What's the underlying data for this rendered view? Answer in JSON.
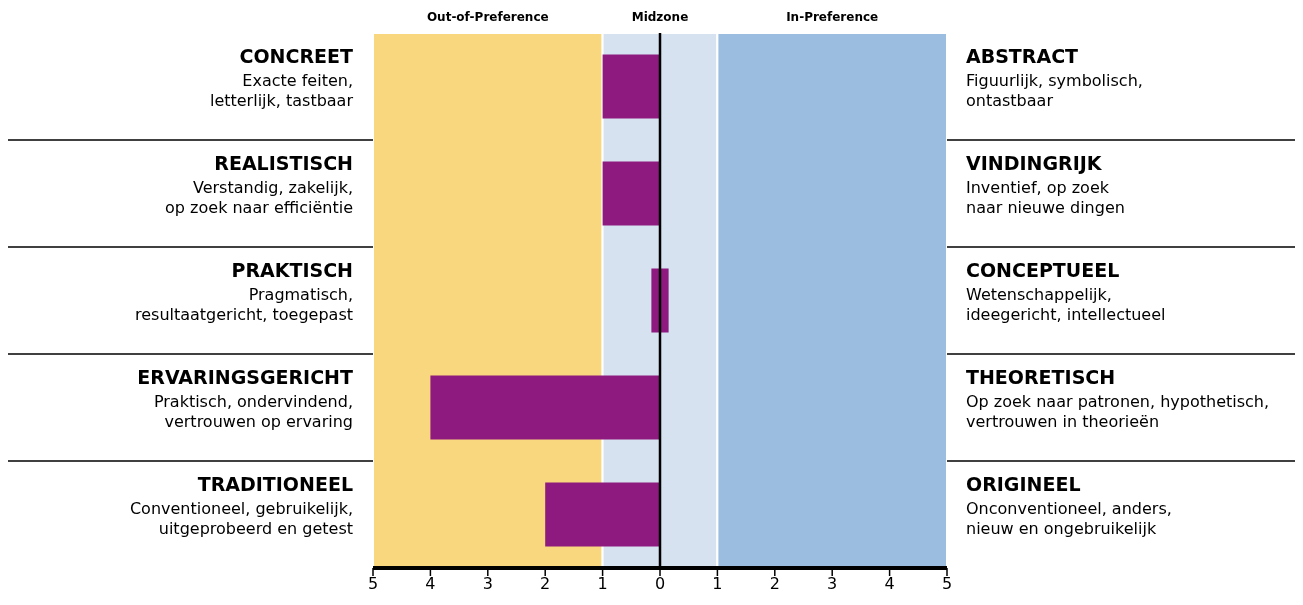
{
  "chart_data": {
    "type": "bar",
    "orientation": "horizontal",
    "categories": [
      "CONCREET\nExacte feiten,\nletterlijk, tastbaar",
      "REALISTISCH\nVerstandig, zakelijk,\nop zoek naar efficiëntie",
      "PRAKTISCH\nPragmatisch,\nresultaatgericht, toegepast",
      "ERVARINGSGERICHT\nPraktisch, ondervindend,\nvertrouwen op ervaring",
      "TRADITIONEEL\nConventioneel, gebruikelijk,\nuitgeprobeerd en getest"
    ],
    "y2_categories": [
      "ABSTRACT\nFiguurlijk, symbolisch,\nontastbaar",
      "VINDINGRIJK\nInventief, op zoek\nnaar nieuwe dingen",
      "CONCEPTUEEL\nWetenschappelijk,\nideegericht, intellectueel",
      "THEORETISCH\nOp zoek naar patronen, hypothetisch,\nvertrouwen in theorieën",
      "ORIGINEEL\nOnconventioneel, anders,\nnieuw en ongebruikelijk"
    ],
    "values": [
      -1,
      -1,
      0.3,
      -4,
      -2
    ],
    "base": [
      0,
      0,
      -0.15,
      0,
      0
    ],
    "color": "#8e1a7f",
    "xlim": [
      -5,
      5
    ],
    "xticks": [
      {
        "value": -5,
        "label": "5"
      },
      {
        "value": -4,
        "label": "4"
      },
      {
        "value": -3,
        "label": "3"
      },
      {
        "value": -2,
        "label": "2"
      },
      {
        "value": -1,
        "label": "1"
      },
      0,
      1,
      2,
      3,
      4,
      5
    ],
    "bands": [
      {
        "axis": "x",
        "from": -5,
        "to": -1,
        "label": "Out-of-Preference",
        "color": "#f9d77e"
      },
      {
        "axis": "x",
        "from": -1,
        "to": 1,
        "label": "Midzone",
        "color": "#d7e2f0"
      },
      {
        "axis": "x",
        "from": 1,
        "to": 5,
        "label": "In-Preference",
        "color": "#9bbde0"
      }
    ],
    "ref_lines": [
      {
        "axis": "x",
        "value": 0,
        "color": "#000000"
      }
    ]
  }
}
